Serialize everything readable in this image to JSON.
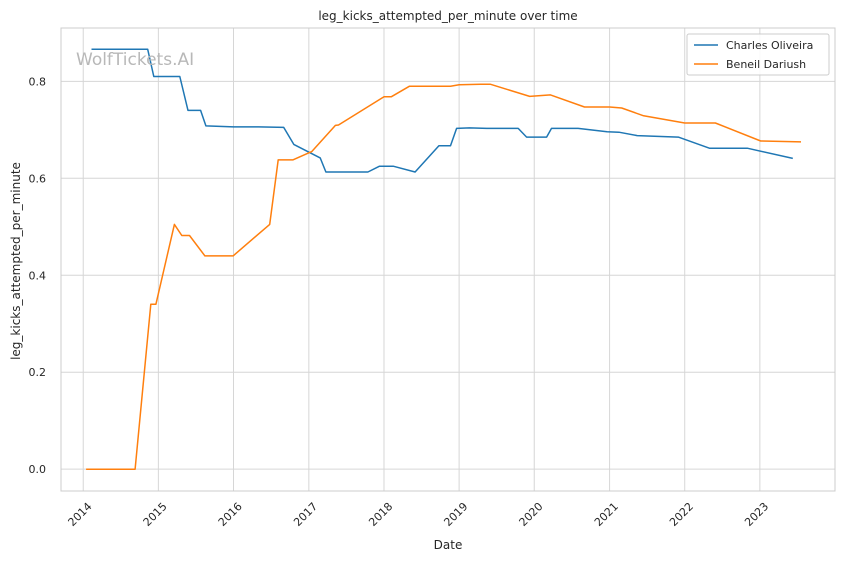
{
  "chart_data": {
    "type": "line",
    "title": "leg_kicks_attempted_per_minute over time",
    "xlabel": "Date",
    "ylabel": "leg_kicks_attempted_per_minute",
    "xlim": [
      "2013-09-15",
      "2024-01-01"
    ],
    "ylim": [
      -0.045,
      0.91
    ],
    "x_ticks": [
      "2014-01-01",
      "2015-01-01",
      "2016-01-01",
      "2017-01-01",
      "2018-01-01",
      "2019-01-01",
      "2020-01-01",
      "2021-01-01",
      "2022-01-01",
      "2023-01-01"
    ],
    "x_tick_labels": [
      "2014",
      "2015",
      "2016",
      "2017",
      "2018",
      "2019",
      "2020",
      "2021",
      "2022",
      "2023"
    ],
    "y_ticks": [
      0.0,
      0.2,
      0.4,
      0.6,
      0.8
    ],
    "y_tick_labels": [
      "0.0",
      "0.2",
      "0.4",
      "0.6",
      "0.8"
    ],
    "grid": true,
    "legend_position": "top-right",
    "watermark": "WolfTickets.AI",
    "colors": {
      "Charles Oliveira": "#1f77b4",
      "Beneil Dariush": "#ff7f0e",
      "grid": "#d6d6d6",
      "spine": "#cccccc"
    },
    "series": [
      {
        "name": "Charles Oliveira",
        "points": [
          [
            "2014-02-10",
            0.866
          ],
          [
            "2014-11-10",
            0.866
          ],
          [
            "2014-12-10",
            0.81
          ],
          [
            "2015-04-15",
            0.81
          ],
          [
            "2015-05-25",
            0.74
          ],
          [
            "2015-07-25",
            0.74
          ],
          [
            "2015-08-20",
            0.708
          ],
          [
            "2016-01-01",
            0.706
          ],
          [
            "2016-05-01",
            0.706
          ],
          [
            "2016-09-01",
            0.705
          ],
          [
            "2016-10-20",
            0.67
          ],
          [
            "2017-02-25",
            0.642
          ],
          [
            "2017-03-25",
            0.613
          ],
          [
            "2017-10-15",
            0.613
          ],
          [
            "2017-12-10",
            0.625
          ],
          [
            "2018-02-15",
            0.625
          ],
          [
            "2018-06-01",
            0.613
          ],
          [
            "2018-09-25",
            0.667
          ],
          [
            "2018-11-20",
            0.667
          ],
          [
            "2018-12-20",
            0.703
          ],
          [
            "2019-02-20",
            0.704
          ],
          [
            "2019-05-15",
            0.703
          ],
          [
            "2019-10-15",
            0.703
          ],
          [
            "2019-11-25",
            0.685
          ],
          [
            "2020-03-01",
            0.685
          ],
          [
            "2020-03-25",
            0.703
          ],
          [
            "2020-08-01",
            0.703
          ],
          [
            "2020-12-20",
            0.696
          ],
          [
            "2021-02-15",
            0.695
          ],
          [
            "2021-05-15",
            0.688
          ],
          [
            "2021-12-01",
            0.685
          ],
          [
            "2022-05-01",
            0.662
          ],
          [
            "2022-11-01",
            0.662
          ],
          [
            "2023-06-10",
            0.641
          ]
        ]
      },
      {
        "name": "Beneil Dariush",
        "points": [
          [
            "2014-01-15",
            0.0
          ],
          [
            "2014-09-10",
            0.0
          ],
          [
            "2014-11-25",
            0.34
          ],
          [
            "2014-12-20",
            0.34
          ],
          [
            "2015-03-20",
            0.505
          ],
          [
            "2015-04-25",
            0.482
          ],
          [
            "2015-06-01",
            0.482
          ],
          [
            "2015-08-15",
            0.44
          ],
          [
            "2015-12-30",
            0.44
          ],
          [
            "2016-06-25",
            0.505
          ],
          [
            "2016-08-05",
            0.638
          ],
          [
            "2016-10-15",
            0.638
          ],
          [
            "2017-01-15",
            0.655
          ],
          [
            "2017-05-10",
            0.709
          ],
          [
            "2017-05-25",
            0.71
          ],
          [
            "2018-01-01",
            0.768
          ],
          [
            "2018-02-05",
            0.768
          ],
          [
            "2018-05-05",
            0.79
          ],
          [
            "2018-11-20",
            0.79
          ],
          [
            "2019-01-01",
            0.793
          ],
          [
            "2019-04-15",
            0.794
          ],
          [
            "2019-06-01",
            0.794
          ],
          [
            "2019-12-10",
            0.769
          ],
          [
            "2020-03-20",
            0.772
          ],
          [
            "2020-09-01",
            0.747
          ],
          [
            "2021-01-01",
            0.747
          ],
          [
            "2021-03-01",
            0.745
          ],
          [
            "2021-06-15",
            0.729
          ],
          [
            "2022-01-01",
            0.714
          ],
          [
            "2022-05-30",
            0.714
          ],
          [
            "2023-01-05",
            0.677
          ],
          [
            "2023-07-20",
            0.675
          ]
        ]
      }
    ]
  }
}
